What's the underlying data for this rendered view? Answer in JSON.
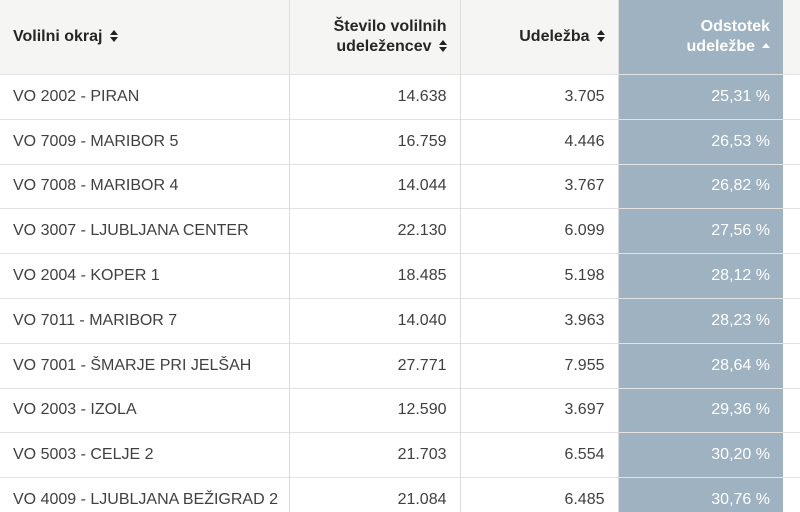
{
  "colors": {
    "highlight_column_bg": "#9fb2c2",
    "header_bg": "#f5f5f4",
    "row_border": "#e2e2e2"
  },
  "table": {
    "columns": [
      {
        "label": "Volilni okraj",
        "sort": "sortable",
        "align": "left"
      },
      {
        "label": "Število volilnih udeležencev",
        "sort": "sortable",
        "align": "right"
      },
      {
        "label": "Udeležba",
        "sort": "sortable",
        "align": "right"
      },
      {
        "label": "Odstotek udeležbe",
        "sort": "ascending",
        "align": "right",
        "highlighted": true
      }
    ],
    "rows": [
      {
        "okraj": "VO 2002 - PIRAN",
        "udelezenci": "14.638",
        "udelezba": "3.705",
        "odstotek": "25,31 %"
      },
      {
        "okraj": "VO 7009 - MARIBOR 5",
        "udelezenci": "16.759",
        "udelezba": "4.446",
        "odstotek": "26,53 %"
      },
      {
        "okraj": "VO 7008 - MARIBOR 4",
        "udelezenci": "14.044",
        "udelezba": "3.767",
        "odstotek": "26,82 %"
      },
      {
        "okraj": "VO 3007 - LJUBLJANA CENTER",
        "udelezenci": "22.130",
        "udelezba": "6.099",
        "odstotek": "27,56 %"
      },
      {
        "okraj": "VO 2004 - KOPER 1",
        "udelezenci": "18.485",
        "udelezba": "5.198",
        "odstotek": "28,12 %"
      },
      {
        "okraj": "VO 7011 - MARIBOR 7",
        "udelezenci": "14.040",
        "udelezba": "3.963",
        "odstotek": "28,23 %"
      },
      {
        "okraj": "VO 7001 - ŠMARJE PRI JELŠAH",
        "udelezenci": "27.771",
        "udelezba": "7.955",
        "odstotek": "28,64 %"
      },
      {
        "okraj": "VO 2003 - IZOLA",
        "udelezenci": "12.590",
        "udelezba": "3.697",
        "odstotek": "29,36 %"
      },
      {
        "okraj": "VO 5003 - CELJE 2",
        "udelezenci": "21.703",
        "udelezba": "6.554",
        "odstotek": "30,20 %"
      },
      {
        "okraj": "VO 4009 - LJUBLJANA BEŽIGRAD 2",
        "udelezenci": "21.084",
        "udelezba": "6.485",
        "odstotek": "30,76 %"
      }
    ]
  }
}
